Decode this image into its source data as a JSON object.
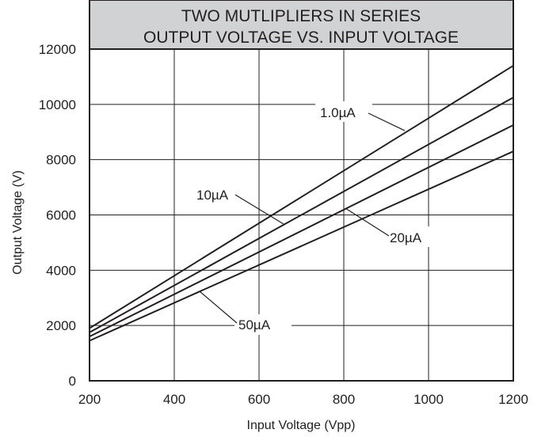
{
  "chart_data": {
    "type": "line",
    "title": [
      "TWO MUTLIPLIERS IN SERIES",
      "OUTPUT VOLTAGE VS. INPUT VOLTAGE"
    ],
    "xlabel": "Input Voltage (Vpp)",
    "ylabel": "Output Voltage (V)",
    "xlim": [
      200,
      1200
    ],
    "ylim": [
      0,
      12000
    ],
    "x_ticks": [
      200,
      400,
      600,
      800,
      1000,
      1200
    ],
    "y_ticks": [
      0,
      2000,
      4000,
      6000,
      8000,
      10000,
      12000
    ],
    "grid": true,
    "colors": {
      "line": "#231f20",
      "title_band": "#d1d2d4",
      "background": "#ffffff"
    },
    "series": [
      {
        "name": "1.0µA",
        "x": [
          200,
          1200
        ],
        "y": [
          1900,
          11400
        ]
      },
      {
        "name": "10µA",
        "x": [
          200,
          1200
        ],
        "y": [
          1750,
          10250
        ]
      },
      {
        "name": "20µA",
        "x": [
          200,
          1200
        ],
        "y": [
          1600,
          9250
        ]
      },
      {
        "name": "50µA",
        "x": [
          200,
          1200
        ],
        "y": [
          1450,
          8300
        ]
      }
    ]
  }
}
